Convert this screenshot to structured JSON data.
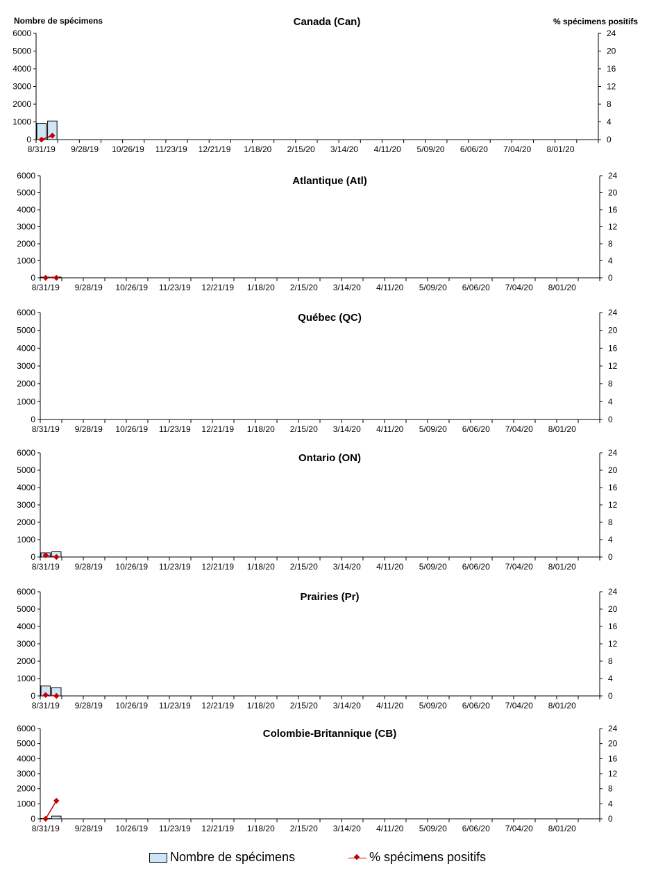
{
  "left_axis_title": "Nombre de spécimens",
  "right_axis_title": "% spécimens positifs",
  "legend": {
    "bar_label": "Nombre de spécimens",
    "line_label": "% spécimens positifs"
  },
  "colors": {
    "bar_fill": "#cfe6f7",
    "bar_stroke": "#000000",
    "line": "#c00000"
  },
  "chart_data": [
    {
      "type": "bar",
      "title": "Canada (Can)",
      "x_ticks": [
        "8/31/19",
        "9/28/19",
        "10/26/19",
        "11/23/19",
        "12/21/19",
        "1/18/20",
        "2/15/20",
        "3/14/20",
        "4/11/20",
        "5/09/20",
        "6/06/20",
        "7/04/20",
        "8/01/20"
      ],
      "y_ticks": [
        0,
        1000,
        2000,
        3000,
        4000,
        5000,
        6000
      ],
      "y2_ticks": [
        0,
        4,
        8,
        12,
        16,
        20,
        24
      ],
      "ylim": [
        0,
        6000
      ],
      "y2lim": [
        0,
        24
      ],
      "weeks": 52,
      "series": [
        {
          "name": "Nombre de spécimens",
          "type": "bar",
          "values": [
            920,
            1050
          ]
        },
        {
          "name": "% spécimens positifs",
          "type": "line",
          "values": [
            0.0,
            0.9
          ]
        }
      ]
    },
    {
      "type": "bar",
      "title": "Atlantique (Atl)",
      "x_ticks": [
        "8/31/19",
        "9/28/19",
        "10/26/19",
        "11/23/19",
        "12/21/19",
        "1/18/20",
        "2/15/20",
        "3/14/20",
        "4/11/20",
        "5/09/20",
        "6/06/20",
        "7/04/20",
        "8/01/20"
      ],
      "y_ticks": [
        0,
        1000,
        2000,
        3000,
        4000,
        5000,
        6000
      ],
      "y2_ticks": [
        0,
        4,
        8,
        12,
        16,
        20,
        24
      ],
      "ylim": [
        0,
        6000
      ],
      "y2lim": [
        0,
        24
      ],
      "weeks": 52,
      "series": [
        {
          "name": "Nombre de spécimens",
          "type": "bar",
          "values": [
            40,
            40
          ]
        },
        {
          "name": "% spécimens positifs",
          "type": "line",
          "values": [
            0.0,
            0.0
          ]
        }
      ]
    },
    {
      "type": "bar",
      "title": "Québec (QC)",
      "x_ticks": [
        "8/31/19",
        "9/28/19",
        "10/26/19",
        "11/23/19",
        "12/21/19",
        "1/18/20",
        "2/15/20",
        "3/14/20",
        "4/11/20",
        "5/09/20",
        "6/06/20",
        "7/04/20",
        "8/01/20"
      ],
      "y_ticks": [
        0,
        1000,
        2000,
        3000,
        4000,
        5000,
        6000
      ],
      "y2_ticks": [
        0,
        4,
        8,
        12,
        16,
        20,
        24
      ],
      "ylim": [
        0,
        6000
      ],
      "y2lim": [
        0,
        24
      ],
      "weeks": 52,
      "series": [
        {
          "name": "Nombre de spécimens",
          "type": "bar",
          "values": []
        },
        {
          "name": "% spécimens positifs",
          "type": "line",
          "values": []
        }
      ]
    },
    {
      "type": "bar",
      "title": "Ontario (ON)",
      "x_ticks": [
        "8/31/19",
        "9/28/19",
        "10/26/19",
        "11/23/19",
        "12/21/19",
        "1/18/20",
        "2/15/20",
        "3/14/20",
        "4/11/20",
        "5/09/20",
        "6/06/20",
        "7/04/20",
        "8/01/20"
      ],
      "y_ticks": [
        0,
        1000,
        2000,
        3000,
        4000,
        5000,
        6000
      ],
      "y2_ticks": [
        0,
        4,
        8,
        12,
        16,
        20,
        24
      ],
      "ylim": [
        0,
        6000
      ],
      "y2lim": [
        0,
        24
      ],
      "weeks": 52,
      "series": [
        {
          "name": "Nombre de spécimens",
          "type": "bar",
          "values": [
            240,
            300
          ]
        },
        {
          "name": "% spécimens positifs",
          "type": "line",
          "values": [
            0.4,
            0.0
          ]
        }
      ]
    },
    {
      "type": "bar",
      "title": "Prairies (Pr)",
      "x_ticks": [
        "8/31/19",
        "9/28/19",
        "10/26/19",
        "11/23/19",
        "12/21/19",
        "1/18/20",
        "2/15/20",
        "3/14/20",
        "4/11/20",
        "5/09/20",
        "6/06/20",
        "7/04/20",
        "8/01/20"
      ],
      "y_ticks": [
        0,
        1000,
        2000,
        3000,
        4000,
        5000,
        6000
      ],
      "y2_ticks": [
        0,
        4,
        8,
        12,
        16,
        20,
        24
      ],
      "ylim": [
        0,
        6000
      ],
      "y2lim": [
        0,
        24
      ],
      "weeks": 52,
      "series": [
        {
          "name": "Nombre de spécimens",
          "type": "bar",
          "values": [
            570,
            480
          ]
        },
        {
          "name": "% spécimens positifs",
          "type": "line",
          "values": [
            0.2,
            0.0
          ]
        }
      ]
    },
    {
      "type": "bar",
      "title": "Colombie-Britannique (CB)",
      "x_ticks": [
        "8/31/19",
        "9/28/19",
        "10/26/19",
        "11/23/19",
        "12/21/19",
        "1/18/20",
        "2/15/20",
        "3/14/20",
        "4/11/20",
        "5/09/20",
        "6/06/20",
        "7/04/20",
        "8/01/20"
      ],
      "y_ticks": [
        0,
        1000,
        2000,
        3000,
        4000,
        5000,
        6000
      ],
      "y2_ticks": [
        0,
        4,
        8,
        12,
        16,
        20,
        24
      ],
      "ylim": [
        0,
        6000
      ],
      "y2lim": [
        0,
        24
      ],
      "weeks": 52,
      "series": [
        {
          "name": "Nombre de spécimens",
          "type": "bar",
          "values": [
            20,
            180
          ]
        },
        {
          "name": "% spécimens positifs",
          "type": "line",
          "values": [
            0.0,
            4.8
          ]
        }
      ]
    }
  ]
}
